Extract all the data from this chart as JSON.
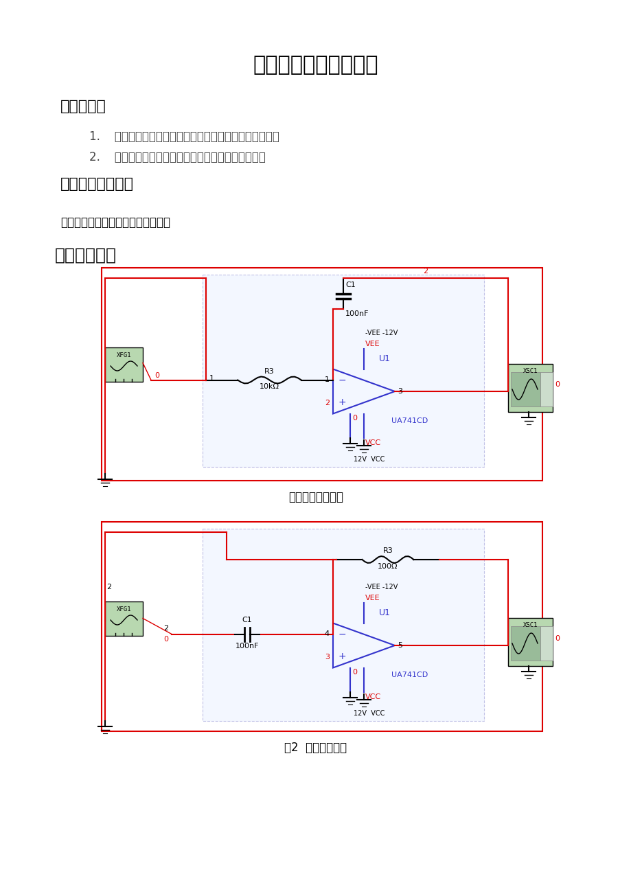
{
  "title": "实验：积分和微分电路",
  "section1": "、实验目的",
  "section2": "、实验设备与器件",
  "section3": "三、实验原理",
  "item1": "1.    熟悉由集成运算放大器组成的积分和微分基本运算电路",
  "item2": "2.    了解运算放大器在实际应用时应考虑的一些问题。",
  "req_text": "要求：根据实际使用设备与器件填写",
  "fig1_caption": "图１积分运算电路",
  "fig2_caption": "图2  微分运算电路",
  "bg_color": "#ffffff",
  "text_color": "#000000",
  "red_color": "#dd0000",
  "blue_color": "#3333cc"
}
